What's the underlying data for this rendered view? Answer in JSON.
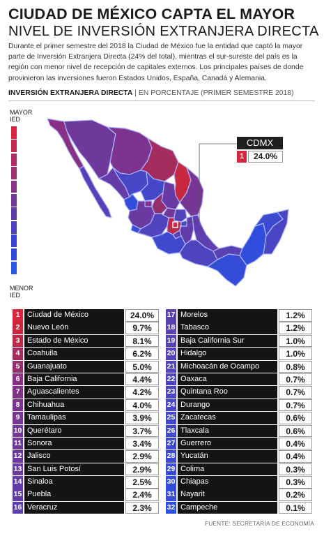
{
  "header": {
    "title_line1": "CIUDAD DE MÉXICO CAPTA EL MAYOR",
    "title_line2": "NIVEL DE INVERSIÓN EXTRANJERA DIRECTA",
    "intro": "Durante el primer semestre del 2018 la Ciudad de México fue la entidad que captó la mayor parte de Inversión Extranjera Directa (24% del total), mientras el sur-sureste del país es la región con menor nivel de recepción de capitales externos. Los principales países de donde provinieron las inversiones fueron Estados Unidos, España, Canadá y Alemania."
  },
  "section": {
    "label_bold": "INVERSIÓN EXTRANJERA DIRECTA",
    "separator": "|",
    "label_normal": "EN PORCENTAJE (PRIMER SEMESTRE 2018)"
  },
  "legend": {
    "high_line1": "MAYOR",
    "high_line2": "IED",
    "low_line1": "MENOR",
    "low_line2": "IED",
    "colors": [
      "#d7263d",
      "#c52a4e",
      "#b02d62",
      "#9c3174",
      "#883587",
      "#743898",
      "#613cab",
      "#4d3fbd",
      "#3a43cf",
      "#2f4bdb",
      "#2a57e6"
    ]
  },
  "callout": {
    "label": "CDMX",
    "rank": "1",
    "value": "24.0%"
  },
  "chart_data": {
    "type": "table",
    "title": "INVERSIÓN EXTRANJERA DIRECTA",
    "unit": "EN PORCENTAJE (PRIMER SEMESTRE 2018)",
    "rows": [
      {
        "rank": "1",
        "state": "Ciudad de México",
        "value": "24.0%",
        "color": "#d7263d"
      },
      {
        "rank": "2",
        "state": "Nuevo León",
        "value": "9.7%",
        "color": "#c8283f"
      },
      {
        "rank": "3",
        "state": "Estado de México",
        "value": "8.1%",
        "color": "#bc2a47"
      },
      {
        "rank": "4",
        "state": "Coahuila",
        "value": "6.2%",
        "color": "#a42d5e"
      },
      {
        "rank": "5",
        "state": "Guanajuato",
        "value": "5.0%",
        "color": "#952f6b"
      },
      {
        "rank": "6",
        "state": "Baja California",
        "value": "4.4%",
        "color": "#883184"
      },
      {
        "rank": "7",
        "state": "Aguascalientes",
        "value": "4.2%",
        "color": "#823388"
      },
      {
        "rank": "8",
        "state": "Chihuahua",
        "value": "4.0%",
        "color": "#7c3490"
      },
      {
        "rank": "9",
        "state": "Tamaulipas",
        "value": "3.9%",
        "color": "#773694"
      },
      {
        "rank": "10",
        "state": "Querétaro",
        "value": "3.7%",
        "color": "#733898"
      },
      {
        "rank": "11",
        "state": "Sonora",
        "value": "3.4%",
        "color": "#6f399c"
      },
      {
        "rank": "12",
        "state": "Jalisco",
        "value": "2.9%",
        "color": "#6b3aa0"
      },
      {
        "rank": "13",
        "state": "San Luis Potosí",
        "value": "2.9%",
        "color": "#683ba4"
      },
      {
        "rank": "14",
        "state": "Sinaloa",
        "value": "2.5%",
        "color": "#653ca7"
      },
      {
        "rank": "15",
        "state": "Puebla",
        "value": "2.4%",
        "color": "#623daa"
      },
      {
        "rank": "16",
        "state": "Veracruz",
        "value": "2.3%",
        "color": "#5f3ead"
      },
      {
        "rank": "17",
        "state": "Morelos",
        "value": "1.2%",
        "color": "#5c3fb0"
      },
      {
        "rank": "18",
        "state": "Tabasco",
        "value": "1.2%",
        "color": "#5940b3"
      },
      {
        "rank": "19",
        "state": "Baja California Sur",
        "value": "1.0%",
        "color": "#5641b6"
      },
      {
        "rank": "20",
        "state": "Hidalgo",
        "value": "1.0%",
        "color": "#5342b9"
      },
      {
        "rank": "21",
        "state": "Michoacán de Ocampo",
        "value": "0.8%",
        "color": "#5043bc"
      },
      {
        "rank": "22",
        "state": "Oaxaca",
        "value": "0.7%",
        "color": "#4d44bf"
      },
      {
        "rank": "23",
        "state": "Quintana Roo",
        "value": "0.7%",
        "color": "#4a45c2"
      },
      {
        "rank": "24",
        "state": "Durango",
        "value": "0.7%",
        "color": "#4746c5"
      },
      {
        "rank": "25",
        "state": "Zacatecas",
        "value": "0.6%",
        "color": "#4447c8"
      },
      {
        "rank": "26",
        "state": "Tlaxcala",
        "value": "0.6%",
        "color": "#4148cb"
      },
      {
        "rank": "27",
        "state": "Guerrero",
        "value": "0.4%",
        "color": "#3e49ce"
      },
      {
        "rank": "28",
        "state": "Yucatán",
        "value": "0.4%",
        "color": "#3b4ad1"
      },
      {
        "rank": "29",
        "state": "Colima",
        "value": "0.3%",
        "color": "#384bd4"
      },
      {
        "rank": "30",
        "state": "Chiapas",
        "value": "0.3%",
        "color": "#354cd7"
      },
      {
        "rank": "31",
        "state": "Nayarit",
        "value": "0.2%",
        "color": "#324dda"
      },
      {
        "rank": "32",
        "state": "Campeche",
        "value": "0.1%",
        "color": "#2f4edd"
      }
    ]
  },
  "footer": {
    "source": "FUENTE: SECRETARÍA DE ECONOMÍA"
  }
}
